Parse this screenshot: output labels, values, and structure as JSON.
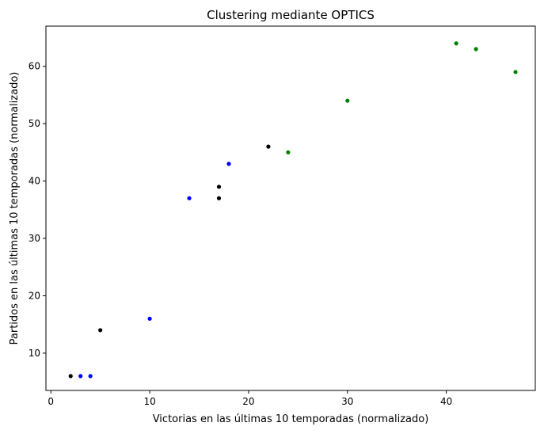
{
  "chart_data": {
    "type": "scatter",
    "title": "Clustering mediante OPTICS",
    "xlabel": "Victorias en las últimas 10 temporadas (normalizado)",
    "ylabel": "Partidos en las últimas 10 temporadas (normalizado)",
    "xlim": [
      -0.5,
      49
    ],
    "ylim": [
      3.5,
      67
    ],
    "xticks": [
      0,
      10,
      20,
      30,
      40
    ],
    "yticks": [
      10,
      20,
      30,
      40,
      50,
      60
    ],
    "grid": false,
    "legend": "none",
    "series": [
      {
        "color": "#000000",
        "points": [
          {
            "x": 2,
            "y": 6
          },
          {
            "x": 5,
            "y": 14
          },
          {
            "x": 17,
            "y": 39
          },
          {
            "x": 17,
            "y": 37
          },
          {
            "x": 22,
            "y": 46
          }
        ]
      },
      {
        "color": "#0000ff",
        "points": [
          {
            "x": 3,
            "y": 6
          },
          {
            "x": 4,
            "y": 6
          },
          {
            "x": 10,
            "y": 16
          },
          {
            "x": 14,
            "y": 37
          },
          {
            "x": 18,
            "y": 43
          }
        ]
      },
      {
        "color": "#008000",
        "points": [
          {
            "x": 24,
            "y": 45
          },
          {
            "x": 30,
            "y": 54
          },
          {
            "x": 41,
            "y": 64
          },
          {
            "x": 43,
            "y": 63
          },
          {
            "x": 47,
            "y": 59
          }
        ]
      }
    ]
  }
}
